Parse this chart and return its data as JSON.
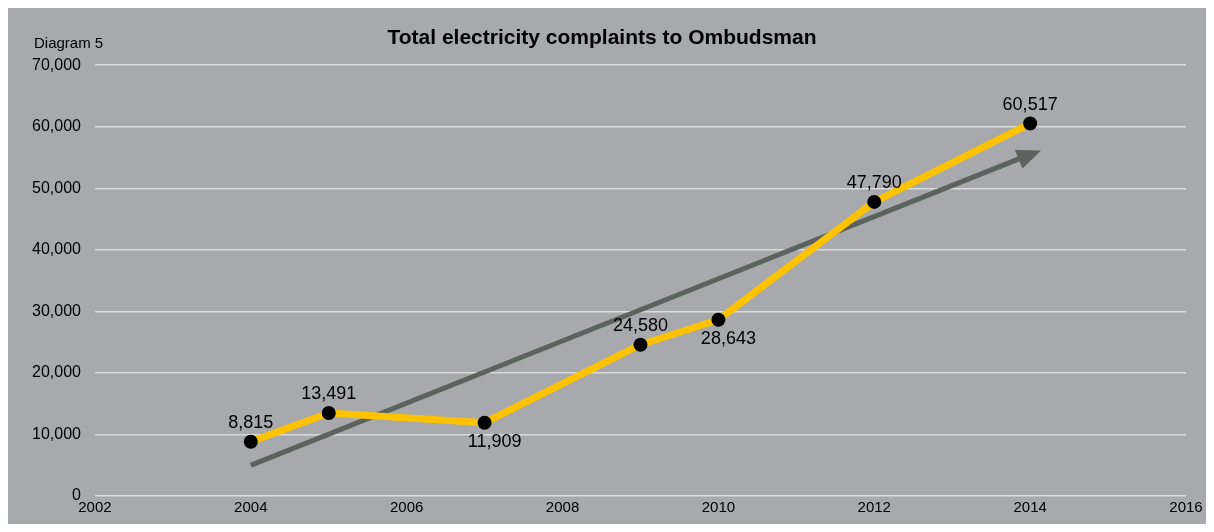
{
  "chart_data": {
    "type": "line",
    "title": "Total electricity complaints to Ombudsman",
    "annotations": [
      "Diagram 5"
    ],
    "series": [
      {
        "color": "#fdc300",
        "x": [
          2004,
          2005,
          2007,
          2009,
          2010,
          2012,
          2014
        ],
        "values": [
          8815,
          13491,
          11909,
          24580,
          28643,
          47790,
          60517
        ],
        "marker": "circle",
        "value_labels": [
          "8,815",
          "13,491",
          "11,909",
          "24,580",
          "28,643",
          "47,790",
          "60,517"
        ]
      },
      {
        "color": "#5c625e",
        "x": [
          2004,
          2014
        ],
        "values": [
          5000,
          55500
        ]
      }
    ],
    "xlim": [
      2002,
      2016
    ],
    "xticks": [
      2002,
      2004,
      2006,
      2008,
      2010,
      2012,
      2014,
      2016
    ],
    "ylim": [
      0,
      70000
    ],
    "yticks": [
      0,
      {
        "value": 10000,
        "label": "10,000"
      },
      {
        "value": 20000,
        "label": "20,000"
      },
      {
        "value": 30000,
        "label": "30,000"
      },
      {
        "value": 40000,
        "label": "40,000"
      },
      {
        "value": 50000,
        "label": "50,000"
      },
      {
        "value": 60000,
        "label": "60,000"
      },
      {
        "value": 70000,
        "label": "70,000"
      }
    ],
    "grid": "y",
    "legend": false
  }
}
